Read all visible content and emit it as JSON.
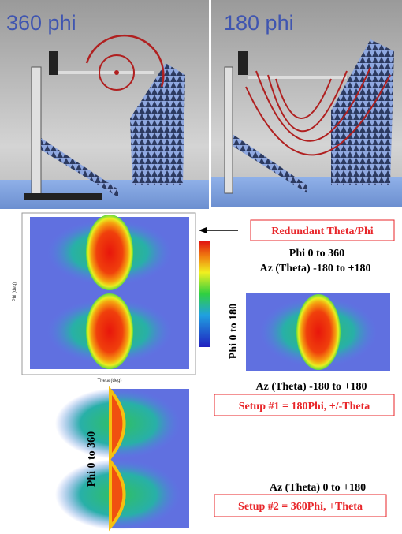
{
  "photos": [
    {
      "label": "360 phi"
    },
    {
      "label": "180 phi"
    }
  ],
  "plot_main": {
    "y_axis_label": "Phi (deg)",
    "x_axis_label": "Theta (deg)"
  },
  "callout": "Redundant Theta/Phi",
  "block_1": {
    "phi_range": "Phi 0 to 360",
    "theta_range": "Az (Theta) -180 to +180"
  },
  "setup_1": {
    "phi_label": "Phi 0 to 180",
    "theta_range": "Az (Theta) -180 to +180",
    "title": "Setup #1 = 180Phi, +/-Theta"
  },
  "setup_2": {
    "phi_label": "Phi 0 to 360",
    "theta_range": "Az  (Theta) 0 to +180",
    "title": "Setup #2 = 360Phi, +Theta"
  }
}
